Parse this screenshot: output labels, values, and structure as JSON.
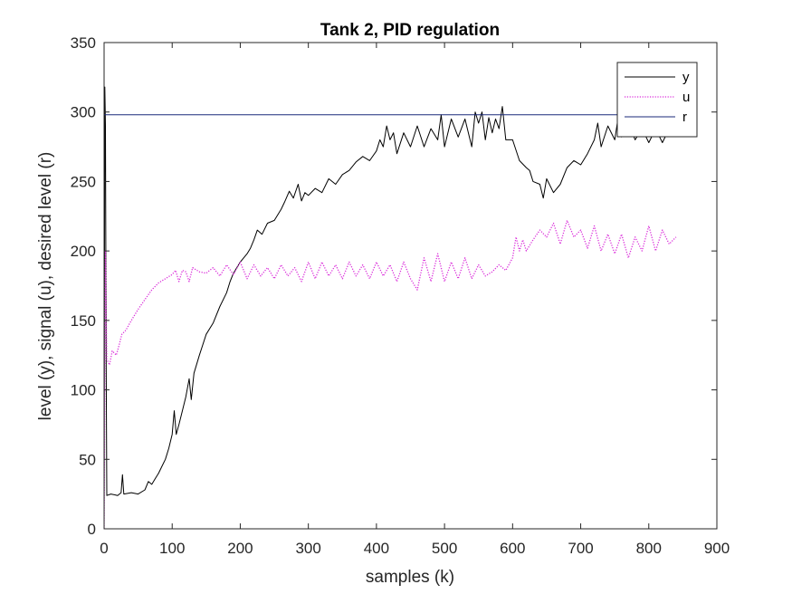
{
  "chart_data": {
    "type": "line",
    "title": "Tank 2, PID regulation",
    "xlabel": "samples (k)",
    "ylabel": "level (y), signal (u), desired level (r)",
    "xlim": [
      0,
      900
    ],
    "ylim": [
      0,
      350
    ],
    "xticks": [
      0,
      100,
      200,
      300,
      400,
      500,
      600,
      700,
      800,
      900
    ],
    "yticks": [
      0,
      50,
      100,
      150,
      200,
      250,
      300,
      350
    ],
    "grid": false,
    "legend_position": "top-right",
    "series": [
      {
        "name": "y",
        "color": "#000000",
        "style": "solid",
        "points": [
          [
            0,
            0
          ],
          [
            1,
            318
          ],
          [
            2,
            290
          ],
          [
            3,
            120
          ],
          [
            4,
            24
          ],
          [
            10,
            25
          ],
          [
            20,
            24
          ],
          [
            25,
            26
          ],
          [
            27,
            39
          ],
          [
            29,
            25
          ],
          [
            40,
            26
          ],
          [
            50,
            25
          ],
          [
            60,
            28
          ],
          [
            65,
            34
          ],
          [
            70,
            32
          ],
          [
            75,
            36
          ],
          [
            80,
            40
          ],
          [
            85,
            45
          ],
          [
            90,
            50
          ],
          [
            95,
            58
          ],
          [
            100,
            68
          ],
          [
            103,
            85
          ],
          [
            106,
            68
          ],
          [
            110,
            75
          ],
          [
            115,
            85
          ],
          [
            120,
            95
          ],
          [
            125,
            108
          ],
          [
            128,
            93
          ],
          [
            132,
            112
          ],
          [
            140,
            125
          ],
          [
            150,
            140
          ],
          [
            160,
            148
          ],
          [
            170,
            160
          ],
          [
            180,
            170
          ],
          [
            185,
            178
          ],
          [
            190,
            184
          ],
          [
            200,
            192
          ],
          [
            210,
            198
          ],
          [
            215,
            202
          ],
          [
            220,
            208
          ],
          [
            225,
            215
          ],
          [
            232,
            212
          ],
          [
            240,
            220
          ],
          [
            250,
            222
          ],
          [
            260,
            230
          ],
          [
            265,
            235
          ],
          [
            272,
            243
          ],
          [
            278,
            238
          ],
          [
            285,
            248
          ],
          [
            290,
            236
          ],
          [
            295,
            242
          ],
          [
            300,
            240
          ],
          [
            310,
            245
          ],
          [
            320,
            242
          ],
          [
            330,
            252
          ],
          [
            340,
            248
          ],
          [
            350,
            255
          ],
          [
            360,
            258
          ],
          [
            370,
            264
          ],
          [
            380,
            268
          ],
          [
            390,
            265
          ],
          [
            400,
            272
          ],
          [
            405,
            280
          ],
          [
            410,
            275
          ],
          [
            415,
            290
          ],
          [
            420,
            280
          ],
          [
            425,
            285
          ],
          [
            430,
            270
          ],
          [
            440,
            285
          ],
          [
            450,
            275
          ],
          [
            460,
            290
          ],
          [
            470,
            275
          ],
          [
            480,
            288
          ],
          [
            490,
            280
          ],
          [
            495,
            298
          ],
          [
            500,
            275
          ],
          [
            510,
            295
          ],
          [
            520,
            282
          ],
          [
            530,
            295
          ],
          [
            540,
            275
          ],
          [
            545,
            300
          ],
          [
            550,
            292
          ],
          [
            555,
            300
          ],
          [
            560,
            280
          ],
          [
            565,
            296
          ],
          [
            570,
            285
          ],
          [
            575,
            295
          ],
          [
            580,
            288
          ],
          [
            585,
            304
          ],
          [
            590,
            280
          ],
          [
            600,
            280
          ],
          [
            610,
            265
          ],
          [
            620,
            260
          ],
          [
            625,
            258
          ],
          [
            630,
            250
          ],
          [
            640,
            248
          ],
          [
            645,
            238
          ],
          [
            650,
            252
          ],
          [
            660,
            242
          ],
          [
            670,
            248
          ],
          [
            680,
            260
          ],
          [
            690,
            265
          ],
          [
            700,
            262
          ],
          [
            710,
            270
          ],
          [
            720,
            280
          ],
          [
            725,
            292
          ],
          [
            730,
            275
          ],
          [
            740,
            290
          ],
          [
            750,
            280
          ],
          [
            755,
            296
          ],
          [
            760,
            282
          ],
          [
            770,
            292
          ],
          [
            780,
            280
          ],
          [
            790,
            288
          ],
          [
            800,
            278
          ],
          [
            810,
            288
          ],
          [
            820,
            278
          ],
          [
            830,
            288
          ],
          [
            840,
            282
          ]
        ]
      },
      {
        "name": "u",
        "color": "#d929d9",
        "style": "dotted",
        "points": [
          [
            0,
            0
          ],
          [
            2,
            200
          ],
          [
            4,
            122
          ],
          [
            8,
            118
          ],
          [
            12,
            128
          ],
          [
            18,
            125
          ],
          [
            22,
            132
          ],
          [
            26,
            140
          ],
          [
            32,
            143
          ],
          [
            40,
            150
          ],
          [
            50,
            158
          ],
          [
            60,
            165
          ],
          [
            70,
            172
          ],
          [
            80,
            177
          ],
          [
            90,
            180
          ],
          [
            100,
            183
          ],
          [
            105,
            186
          ],
          [
            110,
            178
          ],
          [
            115,
            186
          ],
          [
            120,
            185
          ],
          [
            125,
            178
          ],
          [
            130,
            188
          ],
          [
            140,
            185
          ],
          [
            150,
            184
          ],
          [
            160,
            188
          ],
          [
            170,
            182
          ],
          [
            180,
            190
          ],
          [
            190,
            183
          ],
          [
            200,
            192
          ],
          [
            210,
            180
          ],
          [
            220,
            190
          ],
          [
            230,
            182
          ],
          [
            240,
            188
          ],
          [
            250,
            180
          ],
          [
            260,
            190
          ],
          [
            270,
            182
          ],
          [
            280,
            188
          ],
          [
            290,
            178
          ],
          [
            300,
            192
          ],
          [
            310,
            180
          ],
          [
            320,
            192
          ],
          [
            330,
            182
          ],
          [
            340,
            190
          ],
          [
            350,
            180
          ],
          [
            360,
            192
          ],
          [
            370,
            182
          ],
          [
            380,
            190
          ],
          [
            390,
            180
          ],
          [
            400,
            192
          ],
          [
            410,
            182
          ],
          [
            420,
            190
          ],
          [
            430,
            178
          ],
          [
            440,
            192
          ],
          [
            450,
            180
          ],
          [
            460,
            172
          ],
          [
            470,
            195
          ],
          [
            480,
            178
          ],
          [
            490,
            198
          ],
          [
            500,
            178
          ],
          [
            510,
            192
          ],
          [
            520,
            180
          ],
          [
            530,
            195
          ],
          [
            540,
            180
          ],
          [
            550,
            190
          ],
          [
            560,
            182
          ],
          [
            570,
            185
          ],
          [
            580,
            190
          ],
          [
            590,
            186
          ],
          [
            600,
            195
          ],
          [
            605,
            210
          ],
          [
            610,
            200
          ],
          [
            615,
            208
          ],
          [
            620,
            200
          ],
          [
            630,
            208
          ],
          [
            640,
            215
          ],
          [
            650,
            210
          ],
          [
            660,
            220
          ],
          [
            670,
            205
          ],
          [
            680,
            222
          ],
          [
            690,
            210
          ],
          [
            700,
            215
          ],
          [
            710,
            202
          ],
          [
            720,
            218
          ],
          [
            730,
            200
          ],
          [
            740,
            212
          ],
          [
            750,
            198
          ],
          [
            760,
            212
          ],
          [
            770,
            195
          ],
          [
            780,
            210
          ],
          [
            790,
            200
          ],
          [
            800,
            218
          ],
          [
            810,
            200
          ],
          [
            820,
            215
          ],
          [
            830,
            205
          ],
          [
            840,
            210
          ]
        ]
      },
      {
        "name": "r",
        "color": "#1a2a7a",
        "style": "solid",
        "points": [
          [
            0,
            298
          ],
          [
            840,
            298
          ]
        ]
      }
    ]
  }
}
